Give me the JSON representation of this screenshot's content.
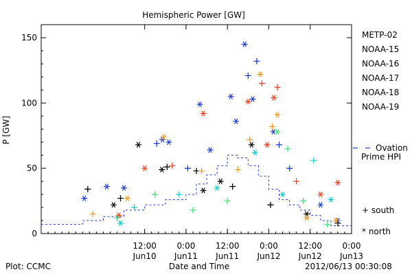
{
  "chart_data": {
    "type": "scatter",
    "title": "Hemispheric Power [GW]",
    "ylabel": "P [GW]",
    "xlabel": "Date and Time",
    "ylim": [
      0,
      160
    ],
    "xlim": [
      "2012-06-09T06:00",
      "2012-06-13T00:00"
    ],
    "yticks": [
      0,
      50,
      100,
      150
    ],
    "xticks": [
      {
        "t": "2012-06-10T12:00",
        "time": "12:00",
        "date": "Jun10"
      },
      {
        "t": "2012-06-11T00:00",
        "time": "0:00",
        "date": "Jun11"
      },
      {
        "t": "2012-06-11T12:00",
        "time": "12:00",
        "date": "Jun11"
      },
      {
        "t": "2012-06-12T00:00",
        "time": "0:00",
        "date": "Jun12"
      },
      {
        "t": "2012-06-12T12:00",
        "time": "12:00",
        "date": "Jun12"
      },
      {
        "t": "2012-06-13T00:00",
        "time": "0:00",
        "date": "Jun13"
      }
    ],
    "series": [
      {
        "name": "METP-02",
        "color": "#000000",
        "points": [
          [
            "2012-06-09T19:30",
            34,
            "s"
          ],
          [
            "2012-06-10T03:00",
            22,
            "n"
          ],
          [
            "2012-06-10T05:00",
            27,
            "s"
          ],
          [
            "2012-06-10T10:10",
            68,
            "n"
          ],
          [
            "2012-06-10T17:00",
            49,
            "n"
          ],
          [
            "2012-06-10T18:30",
            51,
            "s"
          ],
          [
            "2012-06-11T03:00",
            48,
            "s"
          ],
          [
            "2012-06-11T05:00",
            33,
            "n"
          ],
          [
            "2012-06-11T10:00",
            40,
            "n"
          ],
          [
            "2012-06-11T13:30",
            36,
            "s"
          ],
          [
            "2012-06-11T19:00",
            68,
            "n"
          ],
          [
            "2012-06-12T00:30",
            22,
            "s"
          ],
          [
            "2012-06-12T11:00",
            15,
            "n"
          ],
          [
            "2012-06-12T20:00",
            8,
            "s"
          ]
        ]
      },
      {
        "name": "NOAA-15",
        "color": "#1e3ccc",
        "points": [
          [
            "2012-06-09T18:30",
            27,
            "n"
          ],
          [
            "2012-06-10T01:00",
            36,
            "n"
          ],
          [
            "2012-06-10T06:00",
            35,
            "n"
          ],
          [
            "2012-06-10T15:30",
            69,
            "s"
          ],
          [
            "2012-06-10T17:10",
            72,
            "n"
          ],
          [
            "2012-06-10T19:00",
            70,
            "n"
          ],
          [
            "2012-06-11T00:30",
            50,
            "s"
          ],
          [
            "2012-06-11T04:00",
            99,
            "n"
          ],
          [
            "2012-06-11T07:00",
            64,
            "n"
          ],
          [
            "2012-06-11T13:00",
            105,
            "n"
          ],
          [
            "2012-06-11T14:30",
            86,
            "n"
          ],
          [
            "2012-06-11T17:00",
            145,
            "n"
          ],
          [
            "2012-06-11T18:00",
            121,
            "s"
          ],
          [
            "2012-06-11T19:20",
            103,
            "n"
          ],
          [
            "2012-06-11T20:30",
            132,
            "s"
          ],
          [
            "2012-06-12T01:20",
            78,
            "n"
          ],
          [
            "2012-06-12T03:00",
            68,
            "s"
          ],
          [
            "2012-06-12T06:00",
            50,
            "s"
          ],
          [
            "2012-06-12T15:00",
            22,
            "n"
          ],
          [
            "2012-06-12T20:00",
            10,
            "n"
          ]
        ]
      },
      {
        "name": "NOAA-16",
        "color": "#18c8d0",
        "points": [
          [
            "2012-06-10T05:00",
            8,
            "n"
          ],
          [
            "2012-06-10T09:00",
            20,
            "s"
          ],
          [
            "2012-06-10T22:00",
            30,
            "s"
          ],
          [
            "2012-06-11T09:00",
            35,
            "n"
          ],
          [
            "2012-06-11T20:00",
            62,
            "n"
          ],
          [
            "2012-06-12T04:00",
            30,
            "n"
          ],
          [
            "2012-06-12T13:00",
            56,
            "s"
          ],
          [
            "2012-06-12T18:00",
            26,
            "n"
          ]
        ]
      },
      {
        "name": "NOAA-17",
        "color": "#3ee07a",
        "points": [
          [
            "2012-06-10T04:00",
            12,
            "s"
          ],
          [
            "2012-06-10T15:00",
            30,
            "s"
          ],
          [
            "2012-06-11T02:00",
            18,
            "s"
          ],
          [
            "2012-06-11T12:00",
            25,
            "s"
          ],
          [
            "2012-06-12T02:30",
            78,
            "n"
          ],
          [
            "2012-06-12T05:30",
            65,
            "s"
          ],
          [
            "2012-06-12T10:00",
            25,
            "s"
          ],
          [
            "2012-06-12T17:00",
            7,
            "s"
          ]
        ]
      },
      {
        "name": "NOAA-18",
        "color": "#f09a28",
        "points": [
          [
            "2012-06-09T21:00",
            15,
            "s"
          ],
          [
            "2012-06-10T07:00",
            27,
            "n"
          ],
          [
            "2012-06-10T17:30",
            74,
            "n"
          ],
          [
            "2012-06-11T04:30",
            48,
            "s"
          ],
          [
            "2012-06-11T15:00",
            49,
            "s"
          ],
          [
            "2012-06-11T18:30",
            72,
            "s"
          ],
          [
            "2012-06-11T21:30",
            122,
            "n"
          ],
          [
            "2012-06-12T01:00",
            82,
            "s"
          ],
          [
            "2012-06-12T02:30",
            91,
            "n"
          ],
          [
            "2012-06-12T11:00",
            12,
            "n"
          ],
          [
            "2012-06-12T19:30",
            10,
            "n"
          ]
        ]
      },
      {
        "name": "NOAA-19",
        "color": "#e84020",
        "points": [
          [
            "2012-06-10T04:30",
            14,
            "n"
          ],
          [
            "2012-06-10T12:00",
            50,
            "n"
          ],
          [
            "2012-06-10T20:00",
            52,
            "s"
          ],
          [
            "2012-06-11T05:00",
            92,
            "n"
          ],
          [
            "2012-06-11T18:00",
            101,
            "n"
          ],
          [
            "2012-06-11T22:00",
            115,
            "s"
          ],
          [
            "2012-06-11T23:30",
            68,
            "n"
          ],
          [
            "2012-06-12T01:30",
            104,
            "n"
          ],
          [
            "2012-06-12T02:30",
            112,
            "s"
          ],
          [
            "2012-06-12T08:00",
            40,
            "s"
          ],
          [
            "2012-06-12T15:00",
            30,
            "n"
          ],
          [
            "2012-06-12T20:00",
            39,
            "n"
          ]
        ]
      }
    ],
    "ovation": {
      "label_line1": "Ovation",
      "label_line2": "Prime HPI",
      "color": "#1e3ccc",
      "steps": [
        [
          "2012-06-09T06:00",
          7
        ],
        [
          "2012-06-09T18:00",
          10
        ],
        [
          "2012-06-10T00:00",
          13
        ],
        [
          "2012-06-10T06:00",
          18
        ],
        [
          "2012-06-10T12:00",
          22
        ],
        [
          "2012-06-10T18:00",
          26
        ],
        [
          "2012-06-11T00:00",
          30
        ],
        [
          "2012-06-11T03:00",
          38
        ],
        [
          "2012-06-11T06:00",
          45
        ],
        [
          "2012-06-11T09:00",
          52
        ],
        [
          "2012-06-11T12:00",
          60
        ],
        [
          "2012-06-11T15:00",
          58
        ],
        [
          "2012-06-11T18:00",
          52
        ],
        [
          "2012-06-11T21:00",
          44
        ],
        [
          "2012-06-12T00:00",
          34
        ],
        [
          "2012-06-12T03:00",
          26
        ],
        [
          "2012-06-12T06:00",
          22
        ],
        [
          "2012-06-12T09:00",
          18
        ],
        [
          "2012-06-12T12:00",
          14
        ],
        [
          "2012-06-12T15:00",
          10
        ],
        [
          "2012-06-12T18:00",
          6
        ],
        [
          "2012-06-12T21:00",
          6
        ],
        [
          "2012-06-13T00:00",
          6
        ]
      ]
    },
    "legend_position": "right",
    "marker_legend": {
      "south": "+ south",
      "north": "* north"
    }
  },
  "footer": {
    "plot_credit": "Plot: CCMC",
    "timestamp": "2012/06/13 00:30:08"
  }
}
